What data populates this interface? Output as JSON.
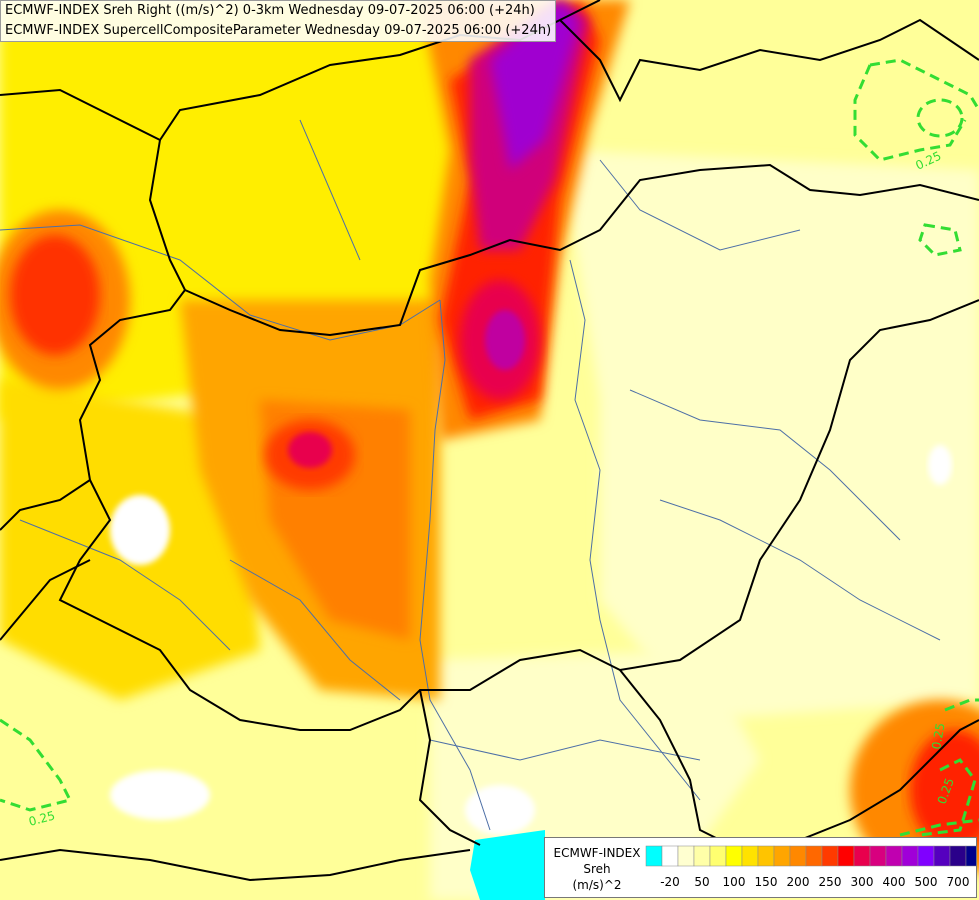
{
  "titles": {
    "line1": "ECMWF-INDEX Sreh Right ((m/s)^2) 0-3km Wednesday 09-07-2025 06:00 (+24h)",
    "line2": "ECMWF-INDEX SupercellCompositeParameter Wednesday 09-07-2025 06:00 (+24h)"
  },
  "contour_labels": [
    "0.25",
    "0.25",
    "0.25",
    "0.25"
  ],
  "legend": {
    "title": [
      "ECMWF-INDEX",
      "Sreh",
      "(m/s)^2"
    ],
    "colors": [
      "#00ffff",
      "#ffffff",
      "#ffffd0",
      "#ffffa8",
      "#ffff70",
      "#ffff00",
      "#ffe200",
      "#ffc400",
      "#ffa500",
      "#ff8800",
      "#ff6800",
      "#ff3a00",
      "#ff0000",
      "#e8004d",
      "#d8007f",
      "#c000b0",
      "#a000d8",
      "#8000ff",
      "#5500bf",
      "#2a008a",
      "#00008b"
    ],
    "labels": [
      "-20",
      "50",
      "100",
      "150",
      "200",
      "250",
      "300",
      "400",
      "500",
      "700"
    ]
  },
  "colors": {
    "country_border": "#000000",
    "river": "#4d6fa6",
    "scp_contour": "#33dd33",
    "background": "#ffff99"
  }
}
